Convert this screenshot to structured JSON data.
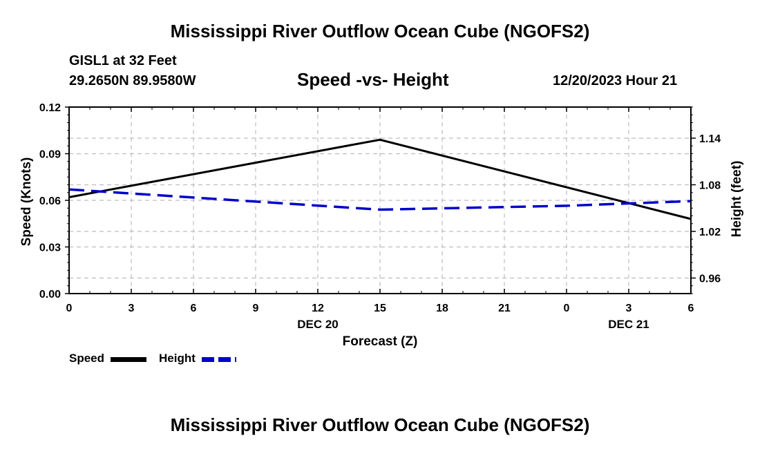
{
  "page": {
    "title": "Mississippi River Outflow Ocean Cube (NGOFS2)",
    "title_repeat": "Mississippi River Outflow Ocean Cube (NGOFS2)",
    "station": "GISL1 at 32 Feet",
    "coords": "29.2650N  89.9580W",
    "datetime": "12/20/2023 Hour 21"
  },
  "chart_data": {
    "type": "line",
    "title": "Speed -vs- Height",
    "xlabel": "Forecast (Z)",
    "ylabel": "Speed (Knots)",
    "y2label": "Height (feet)",
    "x": [
      0,
      3,
      6,
      9,
      12,
      15,
      18,
      21,
      24,
      27,
      30
    ],
    "x_tick_labels": [
      "0",
      "3",
      "6",
      "9",
      "12",
      "15",
      "18",
      "21",
      "0",
      "3",
      "6"
    ],
    "date_labels": [
      {
        "x": 12,
        "text": "DEC 20"
      },
      {
        "x": 27,
        "text": "DEC 21"
      }
    ],
    "xlim": [
      0,
      30
    ],
    "ylim": [
      0,
      0.12
    ],
    "y_ticks": [
      0,
      0.03,
      0.06,
      0.09,
      0.12
    ],
    "y_tick_labels": [
      "0.00",
      "0.03",
      "0.06",
      "0.09",
      "0.12"
    ],
    "y2lim": [
      0.94,
      1.18
    ],
    "y2_ticks": [
      0.96,
      1.02,
      1.08,
      1.14
    ],
    "y2_tick_labels": [
      "0.96",
      "1.02",
      "1.08",
      "1.14"
    ],
    "grid": true,
    "series": [
      {
        "name": "Speed",
        "axis": "left",
        "color": "#000000",
        "style": "solid",
        "x": [
          0,
          15,
          30
        ],
        "values": [
          0.062,
          0.099,
          0.048
        ]
      },
      {
        "name": "Height",
        "axis": "right",
        "color": "#0000cc",
        "style": "dashed",
        "x": [
          0,
          15,
          24,
          30
        ],
        "values": [
          1.074,
          1.048,
          1.053,
          1.059
        ]
      }
    ]
  }
}
